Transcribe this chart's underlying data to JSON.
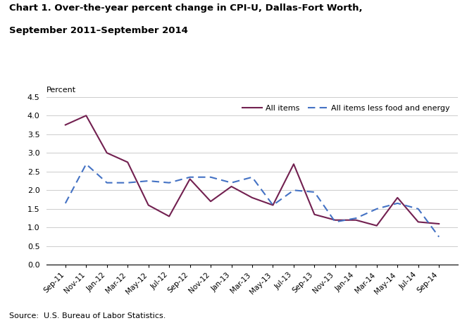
{
  "title_line1": "Chart 1. Over-the-year percent change in CPI-U, Dallas-Fort Worth,",
  "title_line2": "September 2011–September 2014",
  "ylabel": "Percent",
  "source": "Source:  U.S. Bureau of Labor Statistics.",
  "xlabels": [
    "Sep-11",
    "Nov-11",
    "Jan-12",
    "Mar-12",
    "May-12",
    "Jul-12",
    "Sep-12",
    "Nov-12",
    "Jan-13",
    "Mar-13",
    "May-13",
    "Jul-13",
    "Sep-13",
    "Nov-13",
    "Jan-14",
    "Mar-14",
    "May-14",
    "Jul-14",
    "Sep-14"
  ],
  "all_items": [
    3.75,
    4.0,
    3.0,
    2.75,
    1.6,
    1.3,
    2.3,
    1.7,
    2.1,
    1.8,
    1.6,
    2.7,
    1.35,
    1.2,
    1.2,
    1.05,
    1.8,
    1.15,
    1.1
  ],
  "all_items_less": [
    1.65,
    2.7,
    2.2,
    2.2,
    2.25,
    2.2,
    2.35,
    2.35,
    2.2,
    2.35,
    1.6,
    2.0,
    1.95,
    1.15,
    1.25,
    1.5,
    1.65,
    1.5,
    0.75
  ],
  "all_items_color": "#722050",
  "all_items_less_color": "#4472C4",
  "ylim": [
    0.0,
    4.5
  ],
  "yticks": [
    0.0,
    0.5,
    1.0,
    1.5,
    2.0,
    2.5,
    3.0,
    3.5,
    4.0,
    4.5
  ],
  "legend_all_items": "All items",
  "legend_all_items_less": "All items less food and energy",
  "fig_width": 6.63,
  "fig_height": 4.59,
  "dpi": 100
}
